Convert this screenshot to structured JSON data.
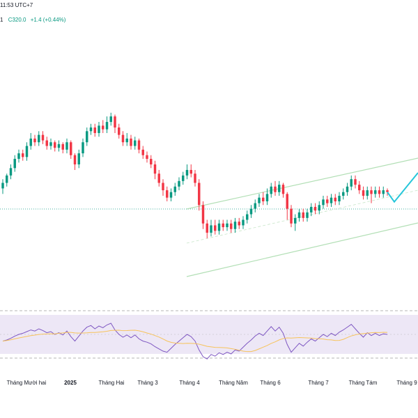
{
  "header": {
    "time": "11:53 UTC+7",
    "symbol_fragment": "1",
    "close_label": "C320.0",
    "change": "+1.4 (+0.44%)"
  },
  "colors": {
    "up": "#089981",
    "down": "#f23645",
    "channel": "#b2dfb5",
    "projection": "#26c6da",
    "rsi_line": "#7e57c2",
    "rsi_ma": "#f7c35a",
    "rsi_band": "#ede7f6"
  },
  "x_axis": {
    "ticks": [
      {
        "label": "Tháng Mười hai",
        "bold": false
      },
      {
        "label": "2025",
        "bold": true
      },
      {
        "label": "Tháng Hai",
        "bold": false
      },
      {
        "label": "Tháng 3",
        "bold": false
      },
      {
        "label": "Tháng 4",
        "bold": false
      },
      {
        "label": "Tháng Năm",
        "bold": false
      },
      {
        "label": "Tháng 6",
        "bold": false
      },
      {
        "label": "Tháng 7",
        "bold": false
      },
      {
        "label": "Tháng Tám",
        "bold": false
      },
      {
        "label": "Tháng 9",
        "bold": false
      }
    ]
  },
  "chart_data": {
    "type": "candlestick",
    "indicator": "RSI with moving average",
    "ohlc_shape": [
      [
        0.47,
        0.5,
        0.44,
        0.52
      ],
      [
        0.5,
        0.54,
        0.48,
        0.55
      ],
      [
        0.54,
        0.58,
        0.52,
        0.6
      ],
      [
        0.58,
        0.63,
        0.56,
        0.65
      ],
      [
        0.63,
        0.66,
        0.61,
        0.68
      ],
      [
        0.66,
        0.64,
        0.62,
        0.68
      ],
      [
        0.64,
        0.7,
        0.62,
        0.72
      ],
      [
        0.7,
        0.74,
        0.68,
        0.77
      ],
      [
        0.74,
        0.72,
        0.7,
        0.76
      ],
      [
        0.72,
        0.76,
        0.7,
        0.78
      ],
      [
        0.76,
        0.73,
        0.71,
        0.78
      ],
      [
        0.73,
        0.7,
        0.68,
        0.75
      ],
      [
        0.7,
        0.72,
        0.68,
        0.74
      ],
      [
        0.72,
        0.69,
        0.67,
        0.73
      ],
      [
        0.69,
        0.71,
        0.67,
        0.73
      ],
      [
        0.71,
        0.68,
        0.66,
        0.72
      ],
      [
        0.68,
        0.72,
        0.66,
        0.74
      ],
      [
        0.72,
        0.65,
        0.63,
        0.73
      ],
      [
        0.65,
        0.6,
        0.57,
        0.66
      ],
      [
        0.6,
        0.66,
        0.58,
        0.68
      ],
      [
        0.66,
        0.72,
        0.64,
        0.74
      ],
      [
        0.72,
        0.78,
        0.7,
        0.8
      ],
      [
        0.78,
        0.8,
        0.76,
        0.82
      ],
      [
        0.8,
        0.77,
        0.75,
        0.82
      ],
      [
        0.77,
        0.81,
        0.75,
        0.83
      ],
      [
        0.81,
        0.79,
        0.77,
        0.84
      ],
      [
        0.79,
        0.83,
        0.77,
        0.86
      ],
      [
        0.83,
        0.86,
        0.81,
        0.88
      ],
      [
        0.86,
        0.8,
        0.77,
        0.87
      ],
      [
        0.8,
        0.76,
        0.74,
        0.82
      ],
      [
        0.76,
        0.72,
        0.7,
        0.78
      ],
      [
        0.72,
        0.74,
        0.7,
        0.77
      ],
      [
        0.74,
        0.7,
        0.68,
        0.76
      ],
      [
        0.7,
        0.73,
        0.68,
        0.75
      ],
      [
        0.73,
        0.68,
        0.66,
        0.74
      ],
      [
        0.68,
        0.65,
        0.63,
        0.7
      ],
      [
        0.65,
        0.63,
        0.61,
        0.67
      ],
      [
        0.63,
        0.6,
        0.58,
        0.65
      ],
      [
        0.6,
        0.55,
        0.52,
        0.62
      ],
      [
        0.55,
        0.5,
        0.48,
        0.57
      ],
      [
        0.5,
        0.46,
        0.43,
        0.52
      ],
      [
        0.46,
        0.42,
        0.4,
        0.48
      ],
      [
        0.42,
        0.45,
        0.4,
        0.47
      ],
      [
        0.45,
        0.48,
        0.43,
        0.5
      ],
      [
        0.48,
        0.51,
        0.46,
        0.53
      ],
      [
        0.51,
        0.54,
        0.49,
        0.56
      ],
      [
        0.54,
        0.57,
        0.52,
        0.6
      ],
      [
        0.57,
        0.55,
        0.53,
        0.6
      ],
      [
        0.55,
        0.5,
        0.48,
        0.57
      ],
      [
        0.5,
        0.38,
        0.35,
        0.52
      ],
      [
        0.38,
        0.28,
        0.25,
        0.4
      ],
      [
        0.28,
        0.23,
        0.2,
        0.3
      ],
      [
        0.23,
        0.27,
        0.21,
        0.3
      ],
      [
        0.27,
        0.24,
        0.22,
        0.3
      ],
      [
        0.24,
        0.28,
        0.22,
        0.3
      ],
      [
        0.28,
        0.26,
        0.24,
        0.3
      ],
      [
        0.26,
        0.28,
        0.24,
        0.3
      ],
      [
        0.28,
        0.25,
        0.23,
        0.3
      ],
      [
        0.25,
        0.29,
        0.23,
        0.31
      ],
      [
        0.29,
        0.27,
        0.25,
        0.31
      ],
      [
        0.27,
        0.3,
        0.25,
        0.32
      ],
      [
        0.3,
        0.33,
        0.28,
        0.35
      ],
      [
        0.33,
        0.36,
        0.31,
        0.38
      ],
      [
        0.36,
        0.39,
        0.34,
        0.41
      ],
      [
        0.39,
        0.42,
        0.37,
        0.44
      ],
      [
        0.42,
        0.4,
        0.38,
        0.45
      ],
      [
        0.4,
        0.44,
        0.38,
        0.47
      ],
      [
        0.44,
        0.48,
        0.42,
        0.5
      ],
      [
        0.48,
        0.45,
        0.43,
        0.51
      ],
      [
        0.45,
        0.49,
        0.43,
        0.51
      ],
      [
        0.49,
        0.44,
        0.42,
        0.5
      ],
      [
        0.44,
        0.36,
        0.3,
        0.45
      ],
      [
        0.36,
        0.28,
        0.26,
        0.38
      ],
      [
        0.28,
        0.31,
        0.24,
        0.33
      ],
      [
        0.31,
        0.34,
        0.29,
        0.36
      ],
      [
        0.34,
        0.31,
        0.29,
        0.36
      ],
      [
        0.31,
        0.34,
        0.29,
        0.36
      ],
      [
        0.34,
        0.37,
        0.32,
        0.39
      ],
      [
        0.37,
        0.35,
        0.33,
        0.39
      ],
      [
        0.35,
        0.38,
        0.33,
        0.4
      ],
      [
        0.38,
        0.41,
        0.36,
        0.43
      ],
      [
        0.41,
        0.39,
        0.37,
        0.43
      ],
      [
        0.39,
        0.42,
        0.37,
        0.44
      ],
      [
        0.42,
        0.4,
        0.38,
        0.44
      ],
      [
        0.4,
        0.43,
        0.38,
        0.45
      ],
      [
        0.43,
        0.45,
        0.41,
        0.47
      ],
      [
        0.45,
        0.48,
        0.43,
        0.5
      ],
      [
        0.48,
        0.52,
        0.46,
        0.54
      ],
      [
        0.52,
        0.49,
        0.47,
        0.54
      ],
      [
        0.49,
        0.46,
        0.44,
        0.51
      ],
      [
        0.46,
        0.43,
        0.41,
        0.48
      ],
      [
        0.43,
        0.46,
        0.41,
        0.48
      ],
      [
        0.46,
        0.44,
        0.39,
        0.48
      ],
      [
        0.44,
        0.46,
        0.42,
        0.48
      ],
      [
        0.46,
        0.44,
        0.42,
        0.48
      ],
      [
        0.44,
        0.46,
        0.42,
        0.48
      ],
      [
        0.46,
        0.45,
        0.43,
        0.47
      ]
    ],
    "rsi_shape": [
      0.38,
      0.4,
      0.43,
      0.47,
      0.5,
      0.52,
      0.55,
      0.58,
      0.56,
      0.6,
      0.57,
      0.53,
      0.55,
      0.5,
      0.53,
      0.49,
      0.56,
      0.46,
      0.38,
      0.47,
      0.56,
      0.63,
      0.66,
      0.6,
      0.65,
      0.62,
      0.67,
      0.7,
      0.58,
      0.5,
      0.45,
      0.49,
      0.44,
      0.49,
      0.42,
      0.38,
      0.36,
      0.33,
      0.28,
      0.24,
      0.2,
      0.18,
      0.25,
      0.32,
      0.38,
      0.44,
      0.5,
      0.46,
      0.38,
      0.22,
      0.1,
      0.06,
      0.14,
      0.11,
      0.17,
      0.14,
      0.18,
      0.15,
      0.22,
      0.2,
      0.27,
      0.34,
      0.4,
      0.47,
      0.52,
      0.48,
      0.56,
      0.64,
      0.56,
      0.63,
      0.52,
      0.32,
      0.18,
      0.26,
      0.34,
      0.29,
      0.36,
      0.42,
      0.38,
      0.44,
      0.5,
      0.46,
      0.52,
      0.48,
      0.54,
      0.58,
      0.63,
      0.68,
      0.6,
      0.52,
      0.45,
      0.53,
      0.48,
      0.52,
      0.48,
      0.51,
      0.5
    ],
    "rsi_levels": [
      70,
      50,
      30
    ],
    "projection_shape": [
      [
        0.45,
        0.4
      ],
      [
        0.57,
        0.85
      ]
    ]
  }
}
